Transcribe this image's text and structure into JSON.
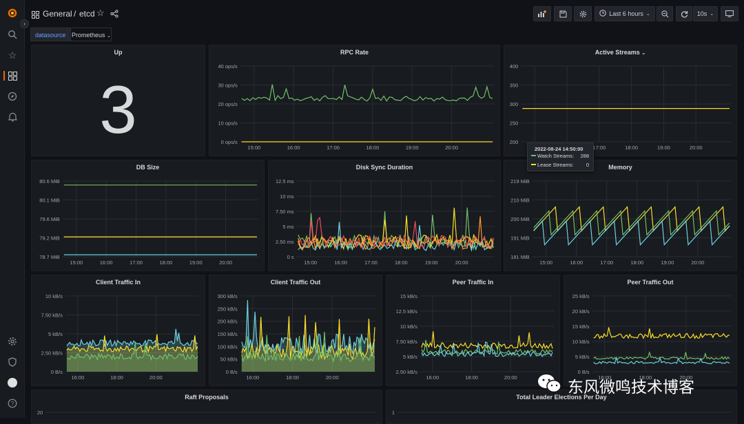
{
  "breadcrumb": {
    "folder": "General",
    "separator": "/",
    "dashboard": "etcd"
  },
  "toolbar": {
    "time_range": "Last 6 hours",
    "refresh_interval": "10s"
  },
  "variables": {
    "label": "datasource",
    "value": "Prometheus"
  },
  "colors": {
    "green": "#73bf69",
    "yellow": "#fade2a",
    "blue": "#5794f2",
    "cyan": "#6ed0e0",
    "orange": "#ff9830",
    "red": "#f2495c",
    "purple": "#b877d9"
  },
  "panels": {
    "up": {
      "title": "Up",
      "value": "3"
    },
    "rpc_rate": {
      "title": "RPC Rate"
    },
    "active_streams": {
      "title": "Active Streams"
    },
    "db_size": {
      "title": "DB Size"
    },
    "disk_sync": {
      "title": "Disk Sync Duration"
    },
    "memory": {
      "title": "Memory"
    },
    "client_in": {
      "title": "Client Traffic In"
    },
    "client_out": {
      "title": "Client Traffic Out"
    },
    "peer_in": {
      "title": "Peer Traffic In"
    },
    "peer_out": {
      "title": "Peer Traffic Out"
    },
    "raft": {
      "title": "Raft Proposals"
    },
    "leader": {
      "title": "Total Leader Elections Per Day"
    }
  },
  "tooltip": {
    "time": "2022-08-24 14:50:00",
    "rows": [
      {
        "label": "Watch Streams:",
        "value": "288",
        "color": "#73bf69"
      },
      {
        "label": "Lease Streams:",
        "value": "0",
        "color": "#fade2a"
      }
    ]
  },
  "watermark": {
    "text": "东风微鸣技术博客"
  },
  "chart_data": [
    {
      "type": "line",
      "title": "RPC Rate",
      "x_ticks": [
        "15:00",
        "16:00",
        "17:00",
        "18:00",
        "19:00",
        "20:00"
      ],
      "y_ticks": [
        "40 ops/s",
        "30 ops/s",
        "20 ops/s",
        "10 ops/s",
        "0 ops/s"
      ],
      "ylim": [
        0,
        40
      ],
      "series": [
        {
          "color": "#73bf69",
          "level": 23,
          "noise": 1.5
        },
        {
          "color": "#fade2a",
          "level": 0,
          "noise": 0
        }
      ]
    },
    {
      "type": "line",
      "title": "Active Streams",
      "x_ticks": [
        "15:00",
        "16:00",
        "17:00",
        "18:00",
        "19:00",
        "20:00"
      ],
      "y_ticks": [
        "400",
        "350",
        "300",
        "250",
        "200"
      ],
      "ylim": [
        200,
        400
      ],
      "series": [
        {
          "color": "#fade2a",
          "level": 288,
          "noise": 0
        }
      ]
    },
    {
      "type": "line",
      "title": "DB Size",
      "x_ticks": [
        "15:00",
        "16:00",
        "17:00",
        "18:00",
        "19:00",
        "20:00"
      ],
      "y_ticks": [
        "80.6 MiB",
        "80.1 MiB",
        "79.6 MiB",
        "79.2 MiB",
        "78.7 MiB"
      ],
      "ylim": [
        78.7,
        80.6
      ],
      "series": [
        {
          "color": "#73bf69",
          "level": 80.5,
          "noise": 0
        },
        {
          "color": "#fade2a",
          "level": 79.2,
          "noise": 0
        },
        {
          "color": "#6ed0e0",
          "level": 78.75,
          "noise": 0
        }
      ]
    },
    {
      "type": "line",
      "title": "Disk Sync Duration",
      "x_ticks": [
        "15:00",
        "16:00",
        "17:00",
        "18:00",
        "19:00",
        "20:00"
      ],
      "y_ticks": [
        "12.5 ms",
        "10 ms",
        "7.50 ms",
        "5 ms",
        "2.50 ms",
        "0 s"
      ],
      "ylim": [
        0,
        12.5
      ],
      "series": [
        {
          "color": "#73bf69",
          "level": 2.5,
          "noise": 1.2
        },
        {
          "color": "#fade2a",
          "level": 2.5,
          "noise": 1.2
        },
        {
          "color": "#6ed0e0",
          "level": 1.8,
          "noise": 0.8
        },
        {
          "color": "#f2495c",
          "level": 2.5,
          "noise": 1.0
        },
        {
          "color": "#ff9830",
          "level": 2.2,
          "noise": 1.0
        }
      ]
    },
    {
      "type": "line",
      "title": "Memory",
      "x_ticks": [
        "15:00",
        "16:00",
        "17:00",
        "18:00",
        "19:00",
        "20:00"
      ],
      "y_ticks": [
        "219 MiB",
        "210 MiB",
        "200 MiB",
        "191 MiB",
        "181 MiB"
      ],
      "ylim": [
        181,
        219
      ],
      "series": [
        {
          "color": "#fade2a",
          "level": 200,
          "noise": 6
        },
        {
          "color": "#73bf69",
          "level": 198,
          "noise": 6
        },
        {
          "color": "#6ed0e0",
          "level": 193,
          "noise": 6
        }
      ]
    },
    {
      "type": "area",
      "title": "Client Traffic In",
      "x_ticks": [
        "16:00",
        "18:00",
        "20:00"
      ],
      "y_ticks": [
        "10 kB/s",
        "7.50 kB/s",
        "5 kB/s",
        "2.50 kB/s",
        "0 B/s"
      ],
      "ylim": [
        0,
        10
      ],
      "series": [
        {
          "color": "#6ed0e0",
          "level": 3.8,
          "noise": 0.4
        },
        {
          "color": "#fade2a",
          "level": 3.0,
          "noise": 0.4
        },
        {
          "color": "#73bf69",
          "level": 2.0,
          "noise": 0.4
        }
      ]
    },
    {
      "type": "area",
      "title": "Client Traffic Out",
      "x_ticks": [
        "16:00",
        "18:00",
        "20:00"
      ],
      "y_ticks": [
        "300 kB/s",
        "250 kB/s",
        "200 kB/s",
        "150 kB/s",
        "100 kB/s",
        "50 kB/s",
        "0 B/s"
      ],
      "ylim": [
        0,
        300
      ],
      "series": [
        {
          "color": "#6ed0e0",
          "level": 110,
          "noise": 40
        },
        {
          "color": "#fade2a",
          "level": 80,
          "noise": 30
        },
        {
          "color": "#73bf69",
          "level": 60,
          "noise": 20
        }
      ]
    },
    {
      "type": "line",
      "title": "Peer Traffic In",
      "x_ticks": [
        "16:00",
        "18:00",
        "20:00"
      ],
      "y_ticks": [
        "15 kB/s",
        "12.5 kB/s",
        "10 kB/s",
        "7.50 kB/s",
        "5 kB/s",
        "2.50 kB/s"
      ],
      "ylim": [
        2.5,
        15
      ],
      "series": [
        {
          "color": "#fade2a",
          "level": 6.8,
          "noise": 0.5
        },
        {
          "color": "#73bf69",
          "level": 5.8,
          "noise": 0.4
        },
        {
          "color": "#6ed0e0",
          "level": 5.4,
          "noise": 0.4
        }
      ]
    },
    {
      "type": "line",
      "title": "Peer Traffic Out",
      "x_ticks": [
        "16:00",
        "18:00",
        "20:00"
      ],
      "y_ticks": [
        "25 kB/s",
        "20 kB/s",
        "15 kB/s",
        "10 kB/s",
        "5 kB/s",
        "0 B/s"
      ],
      "ylim": [
        0,
        25
      ],
      "series": [
        {
          "color": "#fade2a",
          "level": 11.8,
          "noise": 0.8
        },
        {
          "color": "#73bf69",
          "level": 4.5,
          "noise": 0.4
        },
        {
          "color": "#6ed0e0",
          "level": 3.0,
          "noise": 0.4
        }
      ]
    },
    {
      "type": "line",
      "title": "Raft Proposals",
      "y_ticks": [
        "20"
      ],
      "ylim": [
        0,
        20
      ],
      "series": []
    },
    {
      "type": "line",
      "title": "Total Leader Elections Per Day",
      "y_ticks": [
        "1"
      ],
      "ylim": [
        0,
        1
      ],
      "series": []
    }
  ]
}
